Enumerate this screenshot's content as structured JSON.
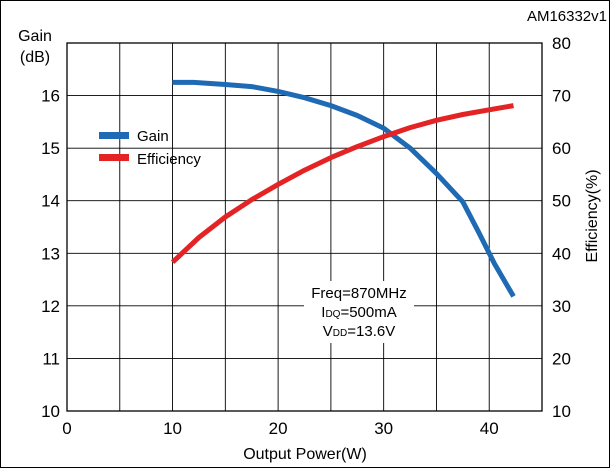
{
  "figure_id": "AM16332v1",
  "colors": {
    "gain": "#1f6ab4",
    "efficiency": "#e42424",
    "grid": "#000000"
  },
  "chart_data": {
    "type": "line",
    "xlabel": "Output Power(W)",
    "ylabel_left_line1": "Gain",
    "ylabel_left_line2": "(dB)",
    "ylabel_right": "Efficiency(%)",
    "xlim": [
      0,
      45
    ],
    "ylim_left": [
      10,
      17
    ],
    "ylim_right": [
      10,
      80
    ],
    "x_ticks": [
      "0",
      "10",
      "20",
      "30",
      "40"
    ],
    "y_left_ticks": [
      "10",
      "11",
      "12",
      "13",
      "14",
      "15",
      "16"
    ],
    "y_right_ticks": [
      "10",
      "20",
      "30",
      "40",
      "50",
      "60",
      "70",
      "80"
    ],
    "grid": true,
    "legend_position": "upper-left",
    "annotation": {
      "freq": "Freq=870MHz",
      "idq_main": "I",
      "idq_sub": "DQ",
      "idq_value": "=500mA",
      "vdd_main": "V",
      "vdd_sub": "DD",
      "vdd_value": "=13.6V"
    },
    "series": [
      {
        "name": "Gain",
        "axis": "left",
        "color": "#1f6ab4",
        "x": [
          10,
          12,
          15,
          17.5,
          20,
          22.5,
          25,
          27.5,
          30,
          32.5,
          35,
          37.5,
          39,
          40.5,
          42.3
        ],
        "y": [
          16.25,
          16.25,
          16.21,
          16.17,
          16.08,
          15.96,
          15.81,
          15.62,
          15.38,
          15.0,
          14.52,
          13.98,
          13.4,
          12.8,
          12.18
        ]
      },
      {
        "name": "Efficiency",
        "axis": "right",
        "color": "#e42424",
        "x": [
          10,
          12.5,
          15,
          17.5,
          20,
          22.5,
          25,
          27.5,
          30,
          32.5,
          35,
          37.5,
          40,
          42.3
        ],
        "y": [
          38.3,
          43.0,
          46.9,
          50.2,
          53.1,
          55.8,
          58.2,
          60.3,
          62.2,
          63.9,
          65.3,
          66.4,
          67.3,
          68.1
        ]
      }
    ]
  }
}
